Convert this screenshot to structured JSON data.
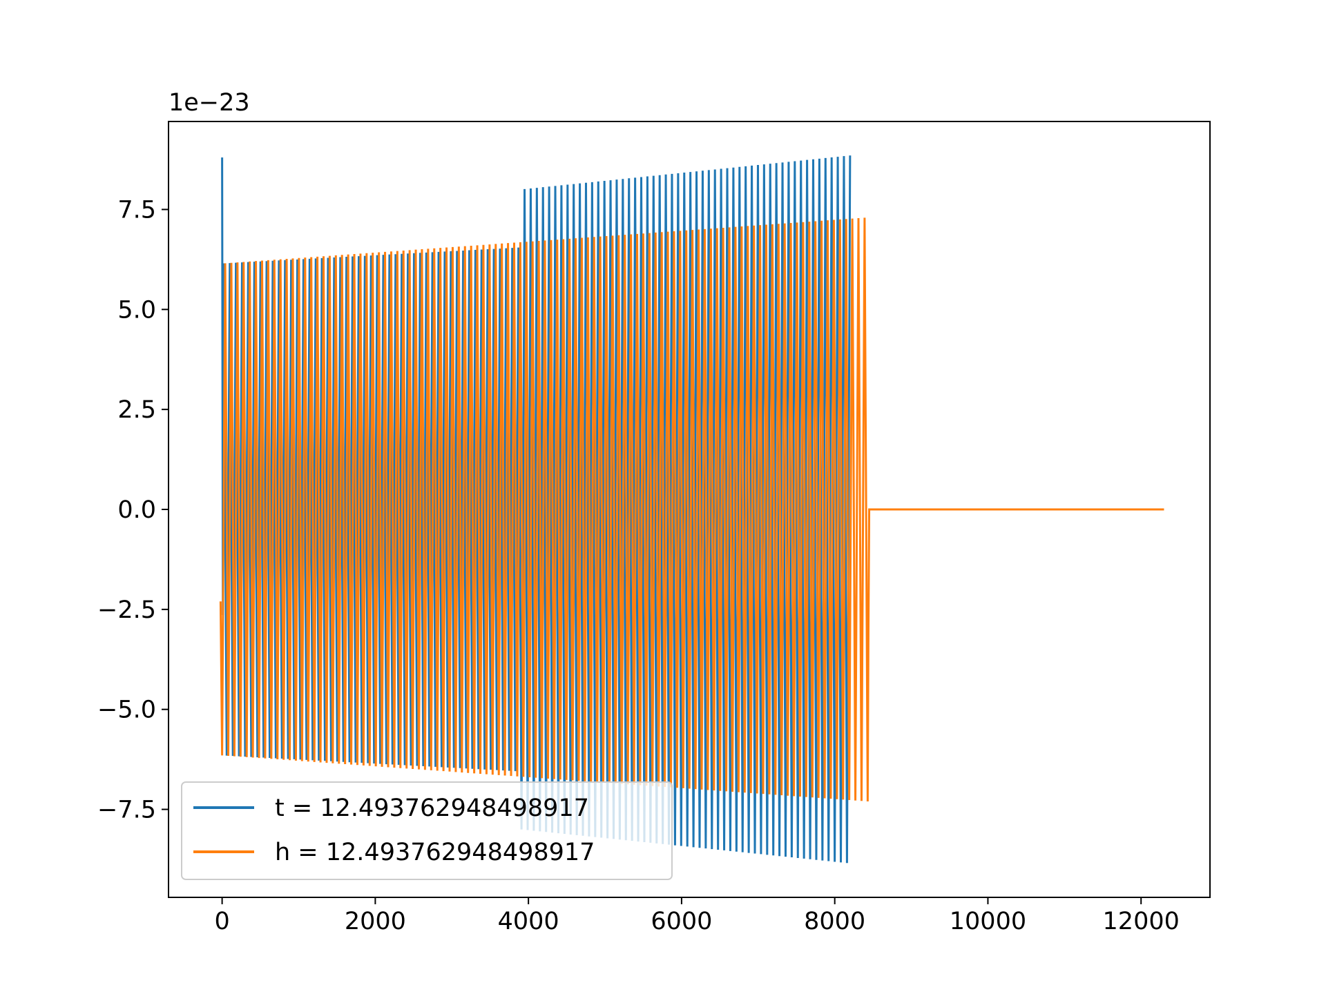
{
  "chart_data": {
    "type": "line",
    "title": "",
    "xlabel": "",
    "ylabel": "",
    "y_offset_label": "1e−23",
    "xlim": [
      -700,
      12900
    ],
    "ylim": [
      -9.7e-23,
      9.7e-23
    ],
    "x_ticks": [
      0,
      2000,
      4000,
      6000,
      8000,
      10000,
      12000
    ],
    "x_tick_labels": [
      "0",
      "2000",
      "4000",
      "6000",
      "8000",
      "10000",
      "12000"
    ],
    "y_ticks": [
      -7.5e-23,
      -5e-23,
      -2.5e-23,
      0,
      2.5e-23,
      5e-23,
      7.5e-23
    ],
    "y_tick_labels": [
      "−7.5",
      "−5.0",
      "−2.5",
      "0.0",
      "2.5",
      "5.0",
      "7.5"
    ],
    "grid": false,
    "legend_position": "lower-left",
    "series": [
      {
        "name": "t = 12.493762948498917",
        "color": "#1f77b4",
        "x_start": 0,
        "x_end": 8200,
        "cycles": 102,
        "initial_spike": 8.8e-23,
        "segments": [
          {
            "x_from": 0,
            "x_to": 3900,
            "amplitude_start": 6.15e-23,
            "amplitude_end": 6.55e-23
          },
          {
            "x_from": 3900,
            "x_to": 8200,
            "amplitude_start": 8e-23,
            "amplitude_end": 8.85e-23
          }
        ]
      },
      {
        "name": "h = 12.493762948498917",
        "color": "#ff7f0e",
        "x_start": 0,
        "x_end": 8430,
        "cycles": 105,
        "amplitude_start": 6.15e-23,
        "amplitude_end": 7.3e-23,
        "flat_until": 12300,
        "flat_value": 0
      }
    ]
  }
}
